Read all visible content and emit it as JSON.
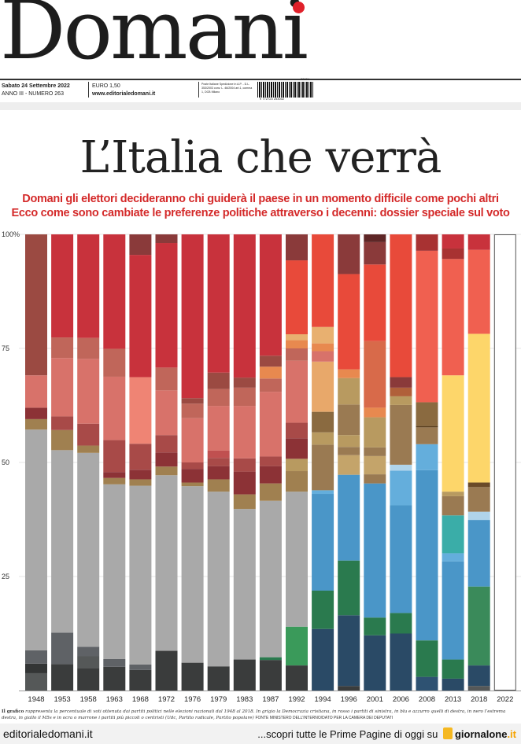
{
  "masthead": {
    "logo": "Domani",
    "date": "Sabato 24 Settembre 2022",
    "issue": "ANNO III - NUMERO 263",
    "price": "EURO 1,50",
    "website": "www.editorialedomani.it",
    "postal": "Poste Italiane Spedizione in A.P. - D.L. 353/2003 conv. L. 46/2004 art.1, comma 1, DCB Milano",
    "barcode_number": "9 772724 253002",
    "barcode_code": "20924"
  },
  "headline": {
    "title": "L’Italia che verrà",
    "subtitle_1": "Domani gli elettori decideranno chi guiderà il paese in un momento difficile come pochi altri",
    "subtitle_2": "Ecco come sono cambiate le preferenze politiche attraverso i decenni: dossier speciale sul voto"
  },
  "chart_data": {
    "type": "bar",
    "stacked": true,
    "ylim": [
      0,
      100
    ],
    "yticks": [
      "25",
      "50",
      "75",
      "100%"
    ],
    "grid": true,
    "categories": [
      "1948",
      "1953",
      "1958",
      "1963",
      "1968",
      "1972",
      "1976",
      "1979",
      "1983",
      "1987",
      "1992",
      "1994",
      "1996",
      "2001",
      "2006",
      "2008",
      "2013",
      "2018",
      "2022"
    ],
    "bars": [
      {
        "year": "1948",
        "segments": [
          [
            3.8,
            "#555858"
          ],
          [
            2.1,
            "#333535"
          ],
          [
            2.9,
            "#5f6266"
          ],
          [
            48.4,
            "#a9a9a9"
          ],
          [
            2.3,
            "#a08050"
          ],
          [
            2.5,
            "#8c3236"
          ],
          [
            7.1,
            "#d8726a"
          ],
          [
            30.9,
            "#9b4a42"
          ]
        ]
      },
      {
        "year": "1953",
        "segments": [
          [
            5.8,
            "#3a3c3c"
          ],
          [
            6.9,
            "#5f6266"
          ],
          [
            40.0,
            "#a9a9a9"
          ],
          [
            4.4,
            "#a08050"
          ],
          [
            3.0,
            "#a84a48"
          ],
          [
            12.8,
            "#d8726a"
          ],
          [
            4.5,
            "#c0665a"
          ],
          [
            22.6,
            "#c8323c"
          ]
        ]
      },
      {
        "year": "1958",
        "segments": [
          [
            4.9,
            "#3a3c3c"
          ],
          [
            2.6,
            "#555858"
          ],
          [
            2.1,
            "#5f6266"
          ],
          [
            42.5,
            "#a9a9a9"
          ],
          [
            1.6,
            "#a08050"
          ],
          [
            4.8,
            "#a84a48"
          ],
          [
            14.2,
            "#d8726a"
          ],
          [
            4.6,
            "#c0665a"
          ],
          [
            22.7,
            "#c8323c"
          ]
        ]
      },
      {
        "year": "1963",
        "segments": [
          [
            5.2,
            "#3a3c3c"
          ],
          [
            1.7,
            "#5f6266"
          ],
          [
            38.3,
            "#a9a9a9"
          ],
          [
            1.4,
            "#a08050"
          ],
          [
            1.3,
            "#8c3236"
          ],
          [
            7.0,
            "#a84a48"
          ],
          [
            13.9,
            "#d8726a"
          ],
          [
            6.1,
            "#c0665a"
          ],
          [
            25.1,
            "#c8323c"
          ]
        ]
      },
      {
        "year": "1968",
        "segments": [
          [
            4.5,
            "#3a3c3c"
          ],
          [
            1.2,
            "#5f6266"
          ],
          [
            39.2,
            "#a9a9a9"
          ],
          [
            1.4,
            "#a08050"
          ],
          [
            2.1,
            "#8c3236"
          ],
          [
            5.7,
            "#a84a48"
          ],
          [
            14.6,
            "#ef8474"
          ],
          [
            26.8,
            "#c8323c"
          ],
          [
            4.5,
            "#8a3a3a"
          ]
        ]
      },
      {
        "year": "1972",
        "segments": [
          [
            8.7,
            "#3a3c3c"
          ],
          [
            38.5,
            "#a9a9a9"
          ],
          [
            1.9,
            "#a08050"
          ],
          [
            3.1,
            "#8c3236"
          ],
          [
            3.8,
            "#a84a48"
          ],
          [
            9.8,
            "#d8726a"
          ],
          [
            5.0,
            "#c0665a"
          ],
          [
            27.3,
            "#c8323c"
          ],
          [
            1.9,
            "#8a3a3a"
          ]
        ]
      },
      {
        "year": "1976",
        "segments": [
          [
            6.1,
            "#3a3c3c"
          ],
          [
            38.7,
            "#a9a9a9"
          ],
          [
            0.8,
            "#a08050"
          ],
          [
            3.0,
            "#8c3236"
          ],
          [
            1.4,
            "#a84a48"
          ],
          [
            9.7,
            "#d8726a"
          ],
          [
            3.2,
            "#c0665a"
          ],
          [
            1.2,
            "#9b4a42"
          ],
          [
            35.9,
            "#c8323c"
          ]
        ]
      },
      {
        "year": "1979",
        "segments": [
          [
            5.3,
            "#3a3c3c"
          ],
          [
            38.3,
            "#a9a9a9"
          ],
          [
            2.7,
            "#a08050"
          ],
          [
            2.9,
            "#8c3236"
          ],
          [
            1.8,
            "#a84a48"
          ],
          [
            1.6,
            "#c05050"
          ],
          [
            9.8,
            "#d8726a"
          ],
          [
            3.7,
            "#c0665a"
          ],
          [
            3.6,
            "#9b4a42"
          ],
          [
            30.3,
            "#c8323c"
          ]
        ]
      },
      {
        "year": "1983",
        "segments": [
          [
            6.8,
            "#3a3c3c"
          ],
          [
            33.0,
            "#a9a9a9"
          ],
          [
            3.2,
            "#a08050"
          ],
          [
            5.0,
            "#8c3236"
          ],
          [
            2.9,
            "#a84a48"
          ],
          [
            11.5,
            "#d8726a"
          ],
          [
            4.0,
            "#c0665a"
          ],
          [
            2.2,
            "#9b4a42"
          ],
          [
            31.4,
            "#c8323c"
          ]
        ]
      },
      {
        "year": "1987",
        "segments": [
          [
            6.7,
            "#3a3c3c"
          ],
          [
            0.6,
            "#2a7a4e"
          ],
          [
            34.3,
            "#a9a9a9"
          ],
          [
            3.8,
            "#a08050"
          ],
          [
            3.8,
            "#8c3236"
          ],
          [
            2.1,
            "#a84a48"
          ],
          [
            14.2,
            "#d8726a"
          ],
          [
            2.9,
            "#c0665a"
          ],
          [
            2.6,
            "#e8894f"
          ],
          [
            2.4,
            "#9b4a42"
          ],
          [
            26.6,
            "#c8323c"
          ]
        ]
      },
      {
        "year": "1992",
        "segments": [
          [
            5.5,
            "#3a3c3c"
          ],
          [
            8.5,
            "#3a9a5a"
          ],
          [
            29.6,
            "#a9a9a9"
          ],
          [
            4.5,
            "#a08050"
          ],
          [
            2.7,
            "#b89a60"
          ],
          [
            4.5,
            "#8c3236"
          ],
          [
            3.4,
            "#a84a48"
          ],
          [
            13.6,
            "#d8726a"
          ],
          [
            2.7,
            "#c0665a"
          ],
          [
            1.8,
            "#e8894f"
          ],
          [
            1.3,
            "#e8b070"
          ],
          [
            16.2,
            "#e84a3a"
          ],
          [
            5.7,
            "#8a3a3a"
          ]
        ]
      },
      {
        "year": "1994",
        "segments": [
          [
            13.5,
            "#2a4a66"
          ],
          [
            8.4,
            "#2a7a4e"
          ],
          [
            21.2,
            "#4a96c8"
          ],
          [
            0.8,
            "#64aedc"
          ],
          [
            10.0,
            "#9a7a52"
          ],
          [
            2.7,
            "#b89a60"
          ],
          [
            4.5,
            "#8a6a40"
          ],
          [
            11.0,
            "#e8a86a"
          ],
          [
            2.3,
            "#d8726a"
          ],
          [
            1.7,
            "#e8894f"
          ],
          [
            3.6,
            "#e8b070"
          ],
          [
            20.3,
            "#e84a3a"
          ]
        ]
      },
      {
        "year": "1996",
        "segments": [
          [
            1.0,
            "#3a3c3c"
          ],
          [
            15.5,
            "#2a4a66"
          ],
          [
            12.0,
            "#2a7a4e"
          ],
          [
            18.8,
            "#4a96c8"
          ],
          [
            4.3,
            "#c4a46a"
          ],
          [
            1.8,
            "#9a7a52"
          ],
          [
            2.6,
            "#b89a60"
          ],
          [
            6.7,
            "#9a7a52"
          ],
          [
            5.8,
            "#b89a60"
          ],
          [
            1.9,
            "#e8894f"
          ],
          [
            20.9,
            "#e84a3a"
          ],
          [
            8.7,
            "#8a3a3a"
          ]
        ]
      },
      {
        "year": "2001",
        "segments": [
          [
            12.1,
            "#2a4a66"
          ],
          [
            3.9,
            "#2a7a4e"
          ],
          [
            29.4,
            "#4a96c8"
          ],
          [
            2.0,
            "#9a7a52"
          ],
          [
            4.0,
            "#c4a46a"
          ],
          [
            1.9,
            "#9a7a52"
          ],
          [
            6.6,
            "#b89a60"
          ],
          [
            2.1,
            "#e8894f"
          ],
          [
            14.6,
            "#d86a4a"
          ],
          [
            16.8,
            "#e84a3a"
          ],
          [
            4.9,
            "#8a3a3a"
          ],
          [
            1.7,
            "#5e2626"
          ]
        ]
      },
      {
        "year": "2006",
        "segments": [
          [
            12.5,
            "#2a4a66"
          ],
          [
            4.5,
            "#2a7a4e"
          ],
          [
            23.6,
            "#4a96c8"
          ],
          [
            7.6,
            "#64aedc"
          ],
          [
            1.3,
            "#b0d4ea"
          ],
          [
            13.1,
            "#9a7a52"
          ],
          [
            1.9,
            "#b89a60"
          ],
          [
            1.9,
            "#b0603a"
          ],
          [
            2.3,
            "#8a3a3a"
          ],
          [
            31.3,
            "#e84a3a"
          ]
        ]
      },
      {
        "year": "2008",
        "segments": [
          [
            3.0,
            "#2e5272"
          ],
          [
            8.0,
            "#2a7a4e"
          ],
          [
            37.3,
            "#4a96c8"
          ],
          [
            5.7,
            "#64aedc"
          ],
          [
            3.7,
            "#9a7a52"
          ],
          [
            0.3,
            "#5a4020"
          ],
          [
            5.2,
            "#8a6a40"
          ],
          [
            33.2,
            "#f06050"
          ],
          [
            3.6,
            "#a83232"
          ]
        ]
      },
      {
        "year": "2013",
        "segments": [
          [
            2.6,
            "#2a4a66"
          ],
          [
            4.2,
            "#2a7a4e"
          ],
          [
            21.5,
            "#4a96c8"
          ],
          [
            1.8,
            "#64aedc"
          ],
          [
            8.3,
            "#3aada8"
          ],
          [
            4.2,
            "#9a7a52"
          ],
          [
            1.0,
            "#b89a60"
          ],
          [
            25.5,
            "#fdd66a"
          ],
          [
            25.5,
            "#f06050"
          ],
          [
            2.3,
            "#a83232"
          ],
          [
            3.1,
            "#c8323c"
          ]
        ]
      },
      {
        "year": "2018",
        "segments": [
          [
            1.0,
            "#555858"
          ],
          [
            4.5,
            "#2a4a66"
          ],
          [
            17.3,
            "#3a8a5a"
          ],
          [
            14.6,
            "#4a96c8"
          ],
          [
            1.8,
            "#b0d4ea"
          ],
          [
            5.4,
            "#9a7a52"
          ],
          [
            1.0,
            "#6a4a28"
          ],
          [
            32.6,
            "#fdd66a"
          ],
          [
            18.4,
            "#f06050"
          ],
          [
            3.4,
            "#c8323c"
          ]
        ]
      },
      {
        "year": "2022",
        "segments": []
      }
    ]
  },
  "caption": {
    "lead": "Il grafico",
    "text": "rappresenta la percentuale di voti ottenuta dai partiti politici nelle elezioni nazionali dal 1948 al 2018. In grigio la Democrazia cristiana, in rosso i partiti di sinistra, in blu e azzurro quelli di destra, in nero l’estrema destra, in giallo il M5s e in ocra o marrone i partiti più piccoli o centristi (Udc, Partito radicale, Partito popolare)",
    "source": "FONTE MINISTERO DELL’INTERNO/DATO PER LA CAMERA DEI DEPUTATI"
  },
  "footer": {
    "left": "editorialedomani.it",
    "right": "...scopri tutte le Prime Pagine di oggi su",
    "brand": "giornalone",
    "brand_tld": ".it"
  }
}
